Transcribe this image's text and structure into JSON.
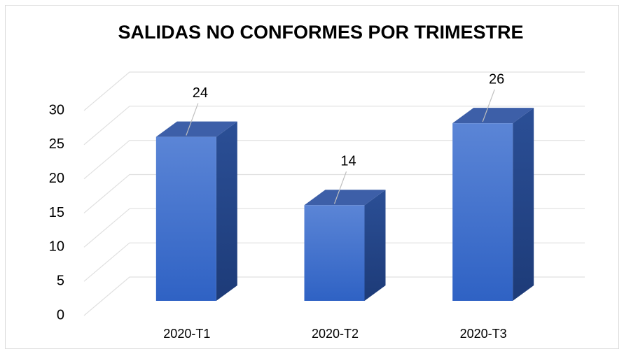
{
  "chart_data": {
    "type": "bar3d",
    "title": "SALIDAS NO CONFORMES POR TRIMESTRE",
    "categories": [
      "2020-T1",
      "2020-T2",
      "2020-T3"
    ],
    "values": [
      24,
      14,
      26
    ],
    "color": "#3f6fce",
    "ylim": [
      0,
      30
    ],
    "yticks": [
      0,
      5,
      10,
      15,
      20,
      25,
      30
    ],
    "grid": true
  }
}
